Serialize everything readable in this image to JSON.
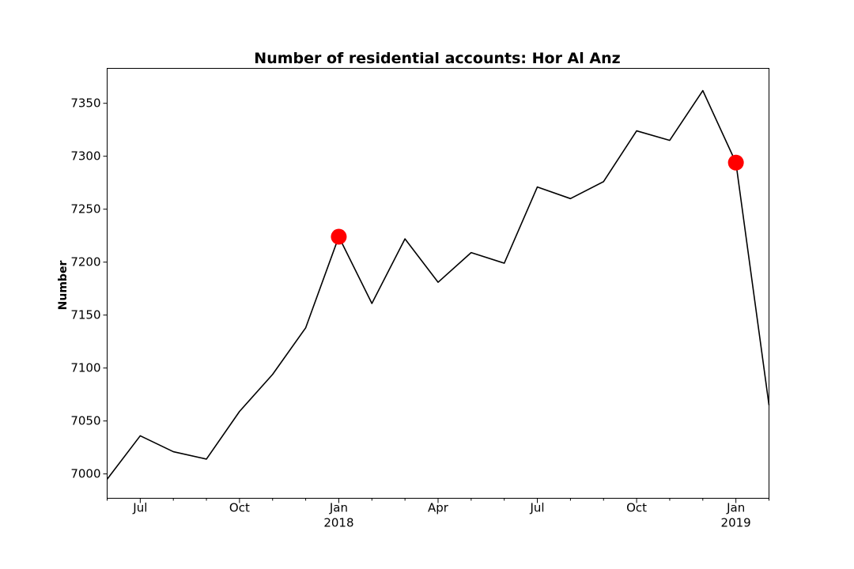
{
  "chart_data": {
    "type": "line",
    "title": "Number of residential accounts: Hor Al Anz",
    "xlabel": "",
    "ylabel": "Number",
    "x": [
      "2017-06",
      "2017-07",
      "2017-08",
      "2017-09",
      "2017-10",
      "2017-11",
      "2017-12",
      "2018-01",
      "2018-02",
      "2018-03",
      "2018-04",
      "2018-05",
      "2018-06",
      "2018-07",
      "2018-08",
      "2018-09",
      "2018-10",
      "2018-11",
      "2018-12",
      "2019-01",
      "2019-02"
    ],
    "series": [
      {
        "values": [
          6995,
          7036,
          7021,
          7014,
          7059,
          7094,
          7138,
          7224,
          7161,
          7222,
          7181,
          7209,
          7199,
          7271,
          7260,
          7276,
          7324,
          7315,
          7362,
          7294,
          7065
        ]
      }
    ],
    "highlighted_points": [
      {
        "x": "2018-01",
        "y": 7224
      },
      {
        "x": "2019-01",
        "y": 7294
      }
    ],
    "ylim": [
      6977,
      7383
    ],
    "yticks": [
      7000,
      7050,
      7100,
      7150,
      7200,
      7250,
      7300,
      7350
    ],
    "xticks": [
      {
        "x": "2017-07",
        "label": "Jul",
        "sublabel": ""
      },
      {
        "x": "2017-10",
        "label": "Oct",
        "sublabel": ""
      },
      {
        "x": "2018-01",
        "label": "Jan",
        "sublabel": "2018"
      },
      {
        "x": "2018-04",
        "label": "Apr",
        "sublabel": ""
      },
      {
        "x": "2018-07",
        "label": "Jul",
        "sublabel": ""
      },
      {
        "x": "2018-10",
        "label": "Oct",
        "sublabel": ""
      },
      {
        "x": "2019-01",
        "label": "Jan",
        "sublabel": "2019"
      }
    ],
    "minor_ticks": [
      "2017-06",
      "2017-08",
      "2017-09",
      "2017-11",
      "2017-12",
      "2018-02",
      "2018-03",
      "2018-05",
      "2018-06",
      "2018-08",
      "2018-09",
      "2018-11",
      "2018-12",
      "2019-02"
    ],
    "grid": false,
    "line_color": "#000000",
    "highlight_color": "#ff0000"
  }
}
